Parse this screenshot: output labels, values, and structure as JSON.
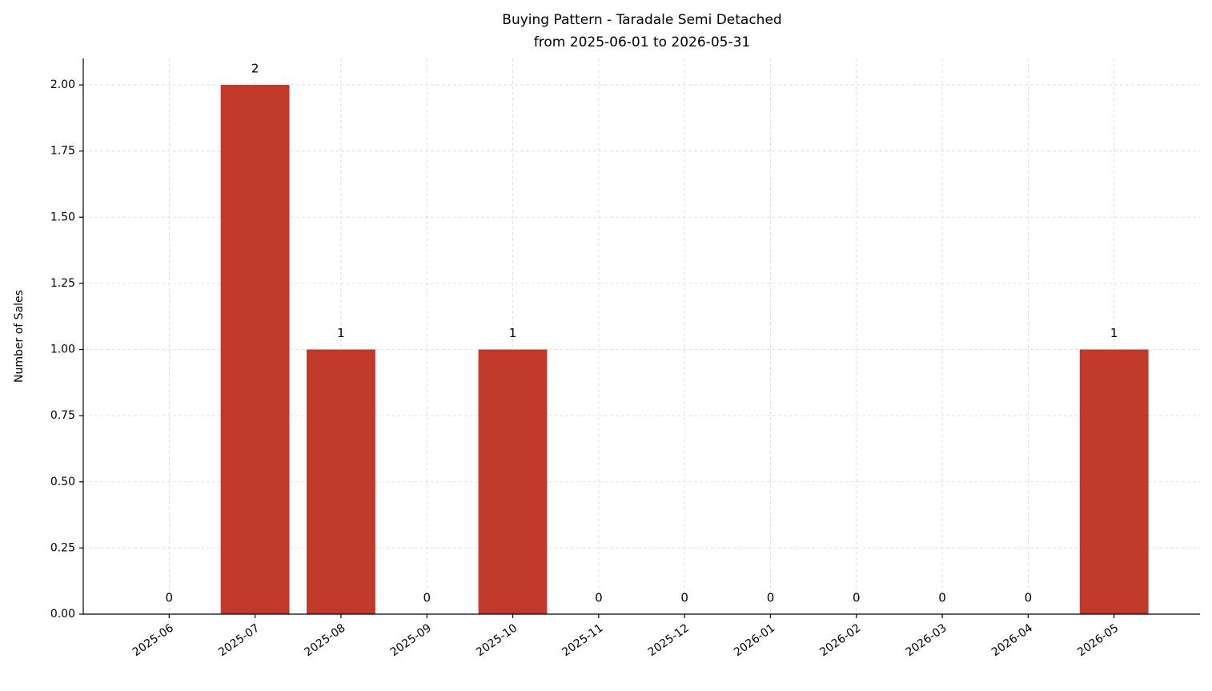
{
  "chart_data": {
    "type": "bar",
    "title": "Buying Pattern - Taradale Semi Detached",
    "subtitle": "from 2025-06-01 to 2026-05-31",
    "y_label": "Number of Sales",
    "categories": [
      "2025-06",
      "2025-07",
      "2025-08",
      "2025-09",
      "2025-10",
      "2025-11",
      "2025-12",
      "2026-01",
      "2026-02",
      "2026-03",
      "2026-04",
      "2026-05"
    ],
    "values": [
      0,
      2,
      1,
      0,
      1,
      0,
      0,
      0,
      0,
      0,
      0,
      1
    ],
    "color": "#c0392b",
    "ylim": [
      0,
      2.1
    ],
    "yticks": [
      {
        "value": 0,
        "label": "0.00"
      },
      {
        "value": 0.25,
        "label": "0.25"
      },
      {
        "value": 0.5,
        "label": "0.50"
      },
      {
        "value": 0.75,
        "label": "0.75"
      },
      {
        "value": 1,
        "label": "1.00"
      },
      {
        "value": 1.25,
        "label": "1.25"
      },
      {
        "value": 1.5,
        "label": "1.50"
      },
      {
        "value": 1.75,
        "label": "1.75"
      },
      {
        "value": 2,
        "label": "2.00"
      }
    ],
    "grid": true
  }
}
